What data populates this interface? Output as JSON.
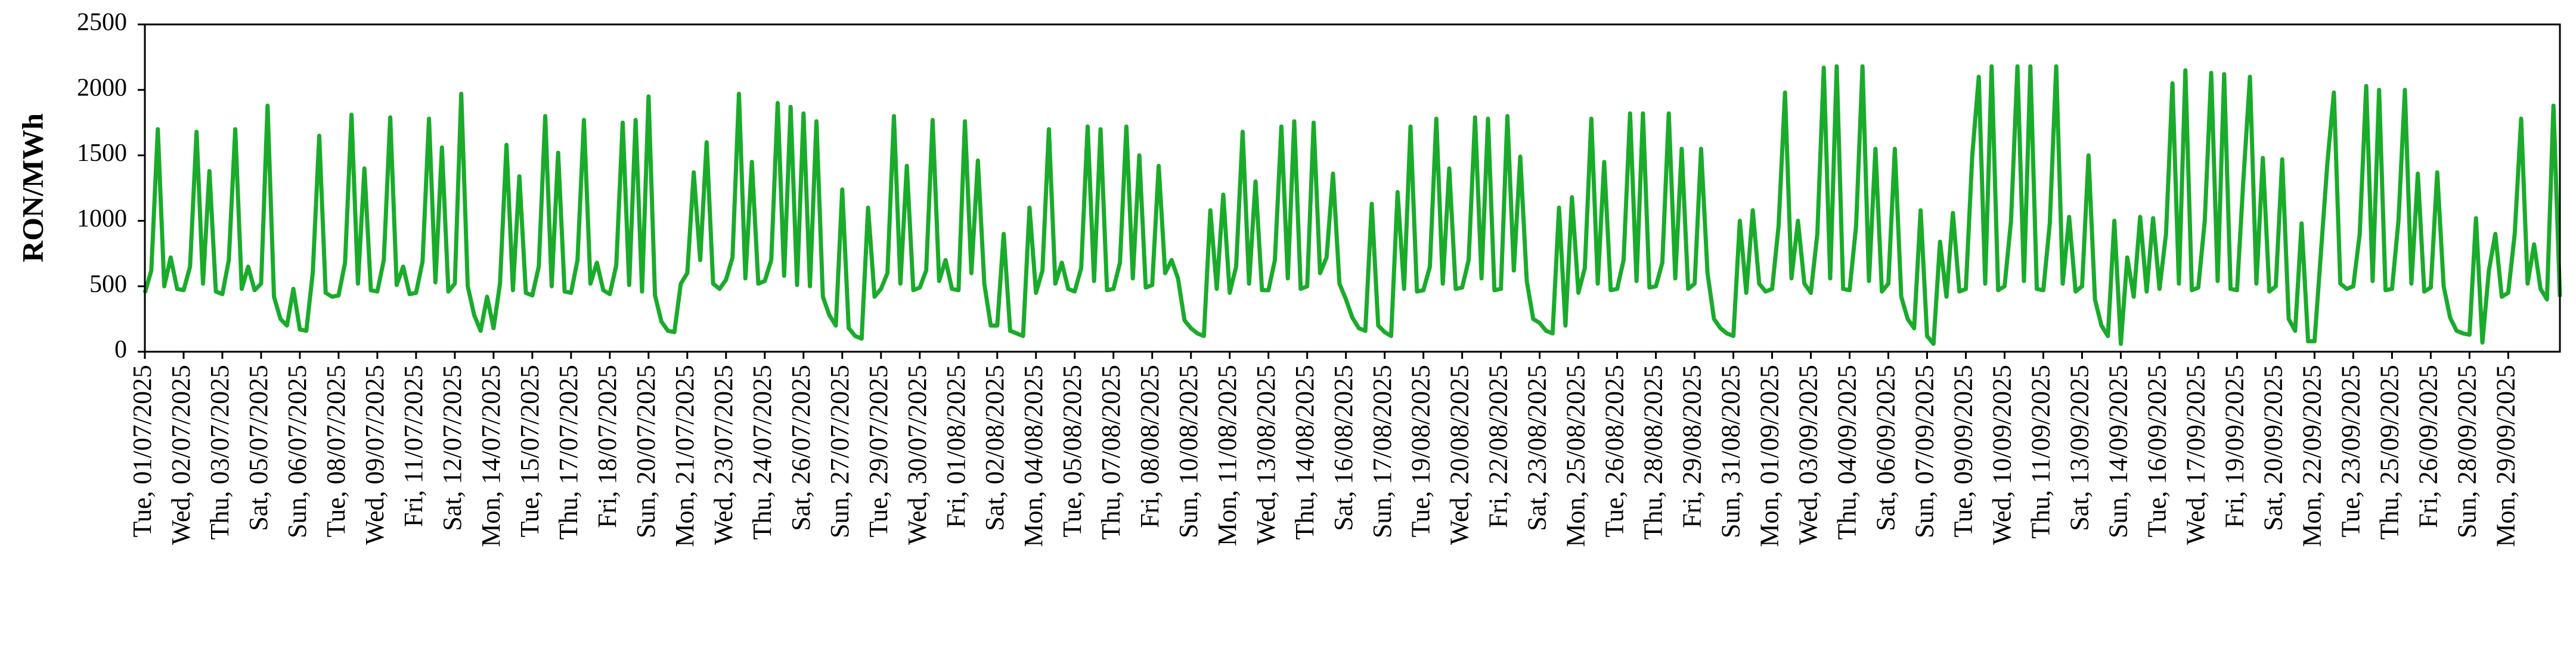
{
  "chart_data": {
    "type": "line",
    "y_label": "RON/MWh",
    "color": "#1aab2b",
    "ylim": [
      0,
      2500
    ],
    "yticks": [
      0,
      500,
      1000,
      1500,
      2000,
      2500
    ],
    "grid": false,
    "categories": [
      "Tue, 01/07/2025",
      null,
      null,
      null,
      null,
      null,
      "Wed, 02/07/2025",
      null,
      null,
      null,
      null,
      null,
      "Thu, 03/07/2025",
      null,
      null,
      null,
      null,
      null,
      "Sat, 05/07/2025",
      null,
      null,
      null,
      null,
      null,
      "Sun, 06/07/2025",
      null,
      null,
      null,
      null,
      null,
      "Tue, 08/07/2025",
      null,
      null,
      null,
      null,
      null,
      "Wed, 09/07/2025",
      null,
      null,
      null,
      null,
      null,
      "Fri, 11/07/2025",
      null,
      null,
      null,
      null,
      null,
      "Sat, 12/07/2025",
      null,
      null,
      null,
      null,
      null,
      "Mon, 14/07/2025",
      null,
      null,
      null,
      null,
      null,
      "Tue, 15/07/2025",
      null,
      null,
      null,
      null,
      null,
      "Thu, 17/07/2025",
      null,
      null,
      null,
      null,
      null,
      "Fri, 18/07/2025",
      null,
      null,
      null,
      null,
      null,
      "Sun, 20/07/2025",
      null,
      null,
      null,
      null,
      null,
      "Mon, 21/07/2025",
      null,
      null,
      null,
      null,
      null,
      "Wed, 23/07/2025",
      null,
      null,
      null,
      null,
      null,
      "Thu, 24/07/2025",
      null,
      null,
      null,
      null,
      null,
      "Sat, 26/07/2025",
      null,
      null,
      null,
      null,
      null,
      "Sun, 27/07/2025",
      null,
      null,
      null,
      null,
      null,
      "Tue, 29/07/2025",
      null,
      null,
      null,
      null,
      null,
      "Wed, 30/07/2025",
      null,
      null,
      null,
      null,
      null,
      "Fri, 01/08/2025",
      null,
      null,
      null,
      null,
      null,
      "Sat, 02/08/2025",
      null,
      null,
      null,
      null,
      null,
      "Mon, 04/08/2025",
      null,
      null,
      null,
      null,
      null,
      "Tue, 05/08/2025",
      null,
      null,
      null,
      null,
      null,
      "Thu, 07/08/2025",
      null,
      null,
      null,
      null,
      null,
      "Fri, 08/08/2025",
      null,
      null,
      null,
      null,
      null,
      "Sun, 10/08/2025",
      null,
      null,
      null,
      null,
      null,
      "Mon, 11/08/2025",
      null,
      null,
      null,
      null,
      null,
      "Wed, 13/08/2025",
      null,
      null,
      null,
      null,
      null,
      "Thu, 14/08/2025",
      null,
      null,
      null,
      null,
      null,
      "Sat, 16/08/2025",
      null,
      null,
      null,
      null,
      null,
      "Sun, 17/08/2025",
      null,
      null,
      null,
      null,
      null,
      "Tue, 19/08/2025",
      null,
      null,
      null,
      null,
      null,
      "Wed, 20/08/2025",
      null,
      null,
      null,
      null,
      null,
      "Fri, 22/08/2025",
      null,
      null,
      null,
      null,
      null,
      "Sat, 23/08/2025",
      null,
      null,
      null,
      null,
      null,
      "Mon, 25/08/2025",
      null,
      null,
      null,
      null,
      null,
      "Tue, 26/08/2025",
      null,
      null,
      null,
      null,
      null,
      "Thu, 28/08/2025",
      null,
      null,
      null,
      null,
      null,
      "Fri, 29/08/2025",
      null,
      null,
      null,
      null,
      null,
      "Sun, 31/08/2025",
      null,
      null,
      null,
      null,
      null,
      "Mon, 01/09/2025",
      null,
      null,
      null,
      null,
      null,
      "Wed, 03/09/2025",
      null,
      null,
      null,
      null,
      null,
      "Thu, 04/09/2025",
      null,
      null,
      null,
      null,
      null,
      "Sat, 06/09/2025",
      null,
      null,
      null,
      null,
      null,
      "Sun, 07/09/2025",
      null,
      null,
      null,
      null,
      null,
      "Tue, 09/09/2025",
      null,
      null,
      null,
      null,
      null,
      "Wed, 10/09/2025",
      null,
      null,
      null,
      null,
      null,
      "Thu, 11/09/2025",
      null,
      null,
      null,
      null,
      null,
      "Sat, 13/09/2025",
      null,
      null,
      null,
      null,
      null,
      "Sun, 14/09/2025",
      null,
      null,
      null,
      null,
      null,
      "Tue, 16/09/2025",
      null,
      null,
      null,
      null,
      null,
      "Wed, 17/09/2025",
      null,
      null,
      null,
      null,
      null,
      "Fri, 19/09/2025",
      null,
      null,
      null,
      null,
      null,
      "Sat, 20/09/2025",
      null,
      null,
      null,
      null,
      null,
      "Mon, 22/09/2025",
      null,
      null,
      null,
      null,
      null,
      "Tue, 23/09/2025",
      null,
      null,
      null,
      null,
      null,
      "Thu, 25/09/2025",
      null,
      null,
      null,
      null,
      null,
      "Fri, 26/09/2025",
      null,
      null,
      null,
      null,
      null,
      "Sun, 28/09/2025",
      null,
      null,
      null,
      null,
      null,
      "Mon, 29/09/2025",
      null,
      null,
      null,
      null,
      null,
      null,
      null,
      null
    ],
    "values": [
      450,
      620,
      1700,
      500,
      720,
      480,
      470,
      650,
      1680,
      520,
      1380,
      460,
      440,
      700,
      1700,
      480,
      650,
      470,
      520,
      1880,
      420,
      250,
      200,
      480,
      170,
      160,
      600,
      1650,
      450,
      420,
      430,
      680,
      1810,
      520,
      1400,
      470,
      460,
      700,
      1790,
      510,
      650,
      440,
      450,
      690,
      1780,
      530,
      1560,
      460,
      520,
      1970,
      500,
      280,
      160,
      420,
      180,
      520,
      1580,
      470,
      1340,
      450,
      430,
      650,
      1800,
      500,
      1520,
      460,
      450,
      700,
      1770,
      520,
      680,
      470,
      440,
      660,
      1750,
      510,
      1770,
      460,
      1950,
      430,
      230,
      160,
      150,
      520,
      600,
      1370,
      700,
      1600,
      520,
      480,
      550,
      720,
      1970,
      560,
      1450,
      520,
      540,
      700,
      1900,
      580,
      1870,
      510,
      1820,
      500,
      1760,
      420,
      280,
      200,
      1240,
      180,
      120,
      100,
      1100,
      420,
      480,
      600,
      1800,
      520,
      1420,
      470,
      490,
      620,
      1770,
      540,
      700,
      480,
      470,
      1760,
      600,
      1460,
      520,
      200,
      200,
      900,
      160,
      140,
      120,
      1100,
      450,
      620,
      1700,
      520,
      680,
      480,
      460,
      640,
      1720,
      540,
      1700,
      470,
      480,
      680,
      1720,
      560,
      1500,
      490,
      510,
      1420,
      600,
      700,
      560,
      240,
      180,
      140,
      120,
      1080,
      480,
      1200,
      450,
      650,
      1680,
      520,
      1300,
      470,
      470,
      700,
      1720,
      560,
      1760,
      480,
      500,
      1750,
      600,
      720,
      1360,
      520,
      400,
      260,
      180,
      160,
      1130,
      200,
      150,
      120,
      1220,
      480,
      1720,
      460,
      470,
      650,
      1780,
      520,
      1400,
      480,
      490,
      700,
      1790,
      560,
      1780,
      470,
      480,
      1800,
      620,
      1490,
      540,
      250,
      220,
      160,
      140,
      1100,
      200,
      1180,
      450,
      640,
      1780,
      520,
      1450,
      470,
      480,
      700,
      1820,
      540,
      1820,
      490,
      500,
      680,
      1820,
      560,
      1550,
      480,
      520,
      1550,
      600,
      250,
      180,
      140,
      120,
      1000,
      450,
      1080,
      520,
      460,
      480,
      960,
      1980,
      560,
      1000,
      520,
      450,
      900,
      2170,
      560,
      2180,
      480,
      470,
      960,
      2180,
      540,
      1550,
      460,
      520,
      1550,
      420,
      250,
      180,
      1080,
      120,
      60,
      840,
      420,
      1060,
      460,
      480,
      1500,
      2100,
      520,
      2180,
      470,
      500,
      1000,
      2180,
      540,
      2180,
      480,
      470,
      980,
      2180,
      520,
      1030,
      460,
      500,
      1500,
      400,
      200,
      120,
      1000,
      60,
      720,
      420,
      1030,
      460,
      1020,
      480,
      900,
      2050,
      520,
      2150,
      470,
      490,
      1000,
      2130,
      540,
      2120,
      480,
      470,
      1330,
      2100,
      520,
      1480,
      460,
      500,
      1470,
      250,
      160,
      980,
      80,
      80,
      760,
      1450,
      1980,
      520,
      480,
      500,
      900,
      2030,
      540,
      2000,
      470,
      480,
      1000,
      2000,
      520,
      1360,
      460,
      490,
      1370,
      500,
      260,
      160,
      140,
      130,
      1020,
      70,
      620,
      900,
      420,
      450,
      900,
      1780,
      520,
      820,
      480,
      400,
      1880,
      420
    ]
  }
}
